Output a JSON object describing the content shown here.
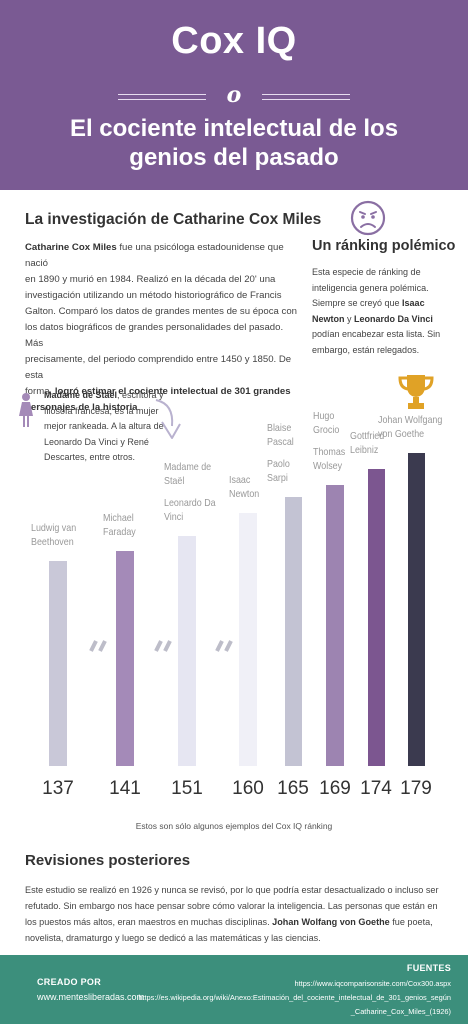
{
  "header": {
    "title": "Cox IQ",
    "divider": "o",
    "subtitle_line1": "El cociente intelectual de los",
    "subtitle_line2": "genios del pasado"
  },
  "intro": {
    "heading": "La investigación de Catharine Cox Miles",
    "lines": [
      [
        "Catharine Cox Miles",
        " fue una psicóloga estadounidense que nació"
      ],
      [
        "",
        "en 1890 y murió en 1984. Realizó en la década del 20' una"
      ],
      [
        "",
        "investigación utilizando un método historiográfico de Francis"
      ],
      [
        "",
        "Galton. Comparó los datos de grandes mentes de su época con"
      ],
      [
        "",
        "los datos biográficos de grandes personalidades del pasado. Más"
      ],
      [
        "",
        "precisamente, del periodo comprendido entre 1450 y 1850. De esta"
      ],
      [
        "",
        "forma, ",
        "logró estimar el cociente intelectual de 301 grandes"
      ],
      [
        "personajes de la historia",
        "."
      ]
    ]
  },
  "polemic": {
    "heading": "Un ránking polémico",
    "lines": [
      "Esta especie de ránking de",
      "inteligencia genera polémica.",
      "Siempre se creyó que ",
      "Newton",
      "podían encabezar esta lista. Sin",
      "embargo, están relegados."
    ],
    "bold_isaac": "Isaac",
    "mid_y": " y ",
    "bold_leonardo": "Leonardo Da Vinci"
  },
  "note": {
    "bold": "Madame de Staël",
    "lines": [
      ", escritora y",
      "filósofa francesa, es la mujer",
      "mejor rankeada. A la altura de",
      "Leonardo Da Vinci y René",
      "Descartes, entre otros."
    ]
  },
  "chart_data": {
    "type": "bar",
    "title": "",
    "xlabel": "",
    "ylabel": "",
    "categories": [
      [
        "Ludwig van Beethoven"
      ],
      [
        "Michael Faraday"
      ],
      [
        "Madame de Staël",
        "Leonardo Da Vinci"
      ],
      [
        "Isaac Newton"
      ],
      [
        "Blaise Pascal",
        "Paolo Sarpi"
      ],
      [
        "Hugo Grocio",
        "Thomas Wolsey"
      ],
      [
        "Gottfried Leibniz"
      ],
      [
        "Johan Wolfgang von Goethe"
      ]
    ],
    "values": [
      137,
      141,
      151,
      160,
      165,
      169,
      174,
      179
    ],
    "value_labels": [
      "137",
      "141",
      "151",
      "160",
      "165",
      "169",
      "174",
      "179"
    ],
    "axis_break_between": [
      [
        0,
        1
      ],
      [
        1,
        2
      ],
      [
        2,
        3
      ]
    ],
    "bar_colors": [
      "#c9c8d8",
      "#a48ab8",
      "#e6e6f2",
      "#f0f0f7",
      "#c3c3d3",
      "#9d84b1",
      "#7c5690",
      "#3b3a4f"
    ],
    "caption": "Estos son sólo algunos ejemplos del Cox IQ ránking",
    "grid": false,
    "legend": "none"
  },
  "revisions": {
    "heading": "Revisiones posteriores",
    "lines": [
      [
        "Este estudio se realizó en 1926 y nunca se revisó, por lo que podría estar desactualizado o incluso ser"
      ],
      [
        "refutado. Sin embargo nos hace pensar sobre cómo valorar la inteligencia. Las personas que están en"
      ],
      [
        "los puestos más altos, eran maestros en muchas disciplinas. ",
        "Johan Wolfang von Goethe",
        " fue poeta,"
      ],
      [
        "novelista, dramaturgo y luego se dedicó a las matemáticas y las ciencias."
      ]
    ]
  },
  "footer": {
    "created_label": "CREADO POR",
    "site": "www.mentesliberadas.com",
    "sources_label": "FUENTES",
    "source1": "https://www.iqcomparisonsite.com/Cox300.aspx",
    "source2a": "https://es.wikipedia.org/wiki/Anexo:Estimación_del_cociente_intelectual_de_301_genios_según",
    "source2b": "_Catharine_Cox_Miles_(1926)"
  },
  "colors": {
    "header_bg": "#7a5a93",
    "footer_bg": "#3c8f7c",
    "accent_purple": "#9d84b1",
    "trophy": "#e0a226"
  },
  "icons": [
    "sad-face-icon",
    "woman-icon",
    "curved-arrow-icon",
    "trophy-icon"
  ]
}
